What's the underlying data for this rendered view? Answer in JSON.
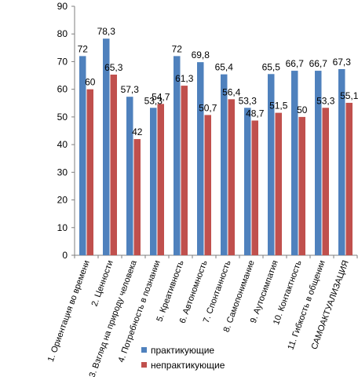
{
  "chart_data": {
    "type": "bar",
    "title": "",
    "xlabel": "",
    "ylabel": "",
    "ylim": [
      0,
      90
    ],
    "yticks": [
      0,
      10,
      20,
      30,
      40,
      50,
      60,
      70,
      80,
      90
    ],
    "grid": false,
    "legend_position": "bottom",
    "categories": [
      "1. Ориентация во времени",
      "2. Ценности",
      "3. Взгляд на природу человека",
      "4. Потребность в познании",
      "5. Креативность",
      "6. Автономность",
      "7. Спонтанность",
      "8. Самопонимание",
      "9. Аутосимпатия",
      "10. Контактность",
      "11. Гибкость в общении",
      "САМОАКТУАЛИЗАЦИЯ"
    ],
    "series": [
      {
        "name": "практикующие",
        "color": "#4F81BD",
        "values": [
          72,
          78.3,
          57.3,
          53.3,
          72,
          69.8,
          65.4,
          53.3,
          65.5,
          66.7,
          66.7,
          67.3
        ],
        "labels": [
          "72",
          "78,3",
          "57,3",
          "53,3",
          "72",
          "69,8",
          "65,4",
          "53,3",
          "65,5",
          "66,7",
          "66,7",
          "67,3"
        ]
      },
      {
        "name": "непрактикующие",
        "color": "#C0504D",
        "values": [
          60,
          65.3,
          42,
          54.7,
          61.3,
          50.7,
          56.4,
          48.7,
          51.5,
          50,
          53.3,
          55.1
        ],
        "labels": [
          "60",
          "65,3",
          "42",
          "54,7",
          "61,3",
          "50,7",
          "56,4",
          "48,7",
          "51,5",
          "50",
          "53,3",
          "55,1"
        ]
      }
    ]
  }
}
